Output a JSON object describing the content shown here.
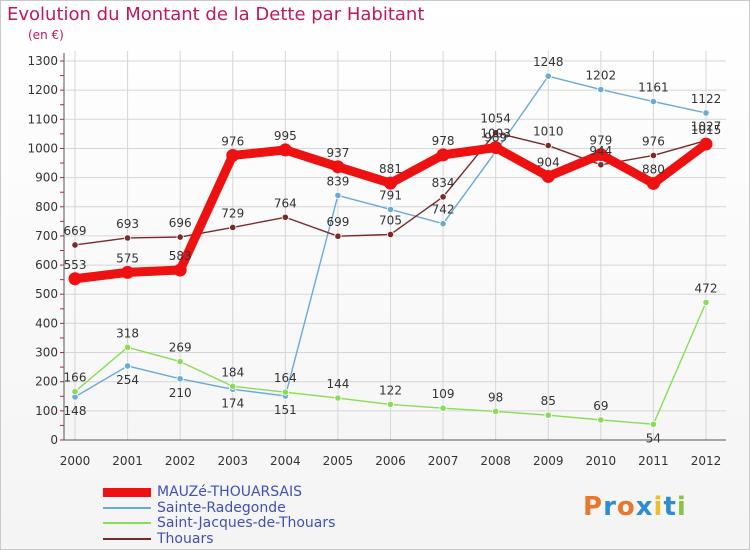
{
  "chart_data": {
    "type": "line",
    "title": "Evolution du Montant de la Dette par Habitant",
    "unit": "(en €)",
    "x": [
      "2000",
      "2001",
      "2002",
      "2003",
      "2004",
      "2005",
      "2006",
      "2007",
      "2008",
      "2009",
      "2010",
      "2011",
      "2012"
    ],
    "ylim": [
      0,
      1300
    ],
    "yticks": [
      "0",
      "100",
      "200",
      "300",
      "400",
      "500",
      "600",
      "700",
      "800",
      "900",
      "1000",
      "1100",
      "1200",
      "1300"
    ],
    "grid": true,
    "legend_position": "bottom-left",
    "series": [
      {
        "name": "MAUZé-THOUARSAIS",
        "color": "#ee1111",
        "values": [
          553,
          575,
          583,
          976,
          995,
          937,
          881,
          978,
          1003,
          904,
          979,
          880,
          1015
        ],
        "labels": [
          "553",
          "575",
          "583",
          "976",
          "995",
          "937",
          "881",
          "978",
          "1003",
          "904",
          "979",
          "880",
          "1015"
        ]
      },
      {
        "name": "Sainte-Radegonde",
        "color": "#6aaad6",
        "values": [
          148,
          254,
          210,
          174,
          151,
          839,
          791,
          742,
          989,
          1248,
          1202,
          1161,
          1122
        ],
        "labels": [
          "148",
          "254",
          "210",
          "174",
          "151",
          "839",
          "791",
          "742",
          "989",
          "1248",
          "1202",
          "1161",
          "1122"
        ]
      },
      {
        "name": "Saint-Jacques-de-Thouars",
        "color": "#88dd55",
        "values": [
          166,
          318,
          269,
          184,
          164,
          144,
          122,
          109,
          98,
          85,
          69,
          54,
          472
        ],
        "labels": [
          "166",
          "318",
          "269",
          "184",
          "164",
          "144",
          "122",
          "109",
          "98",
          "85",
          "69",
          "54",
          "472"
        ]
      },
      {
        "name": "Thouars",
        "color": "#7a2a2a",
        "values": [
          669,
          693,
          696,
          729,
          764,
          699,
          705,
          834,
          1054,
          1010,
          944,
          976,
          1027
        ],
        "labels": [
          "669",
          "693",
          "696",
          "729",
          "764",
          "699",
          "705",
          "834",
          "1054",
          "1010",
          "944",
          "976",
          "1027"
        ]
      }
    ]
  },
  "logo": {
    "text": "Proxiti",
    "colors": [
      "#e8762d",
      "#2e8ccf",
      "#e8762d",
      "#2e8ccf",
      "#e8c12d",
      "#2e8ccf",
      "#8bc34a"
    ]
  }
}
